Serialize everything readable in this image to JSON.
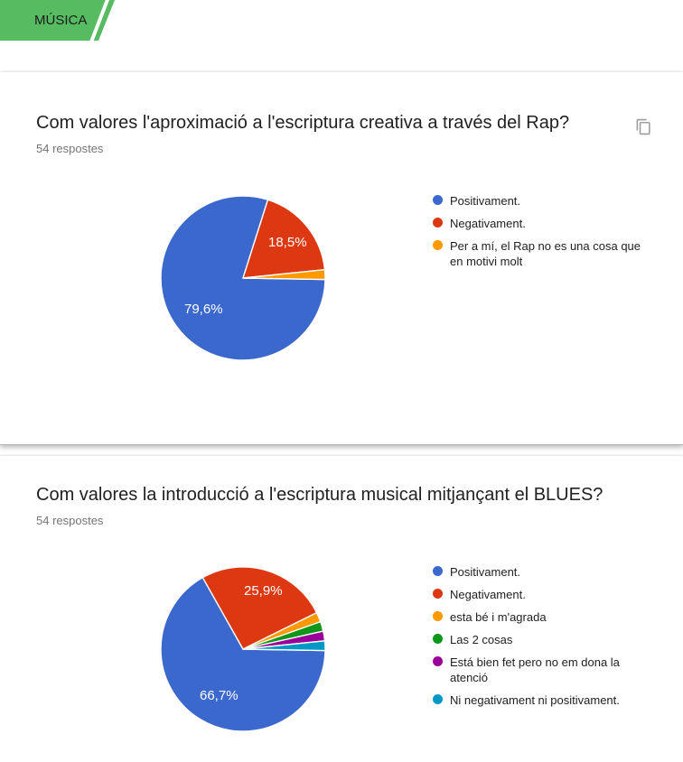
{
  "header": {
    "tab_label": "MÚSICA",
    "tab_color": "#57bb62"
  },
  "questions": [
    {
      "title": "Com valores l'aproximació a l'escriptura creativa a través del Rap?",
      "responses_label": "54 respostes",
      "copy_icon": "content-copy-icon"
    },
    {
      "title": "Com valores la introducció a l'escriptura musical mitjançant el BLUES?",
      "responses_label": "54 respostes"
    }
  ],
  "chart_data": [
    {
      "type": "pie",
      "title": "Com valores l'aproximació a l'escriptura creativa a través del Rap?",
      "labels": [
        "Positivament.",
        "Negativament.",
        "Per a mí, el Rap no es una cosa que en motivi molt"
      ],
      "values_percent": [
        79.6,
        18.5,
        1.9
      ],
      "colors": [
        "#3b68cd",
        "#dc3912",
        "#ff9900"
      ],
      "shown_labels": [
        "79,6%",
        "18,5%"
      ],
      "slice_label_color": "#ffffff",
      "legend_position": "right",
      "start_angle_deg": 91
    },
    {
      "type": "pie",
      "title": "Com valores la introducció a l'escriptura musical mitjançant el BLUES?",
      "labels": [
        "Positivament.",
        "Negativament.",
        "esta bé i m'agrada",
        "Las 2 cosas",
        "Está bien fet pero no em dona la atenció",
        "Ni negativament ni positivament."
      ],
      "values_percent": [
        66.7,
        25.9,
        1.9,
        1.9,
        1.9,
        1.9
      ],
      "colors": [
        "#3b68cd",
        "#dc3912",
        "#ff9900",
        "#109618",
        "#990099",
        "#0099c6"
      ],
      "shown_labels": [
        "66,7%",
        "25,9%"
      ],
      "slice_label_color": "#ffffff",
      "legend_position": "right",
      "start_angle_deg": 91
    }
  ]
}
